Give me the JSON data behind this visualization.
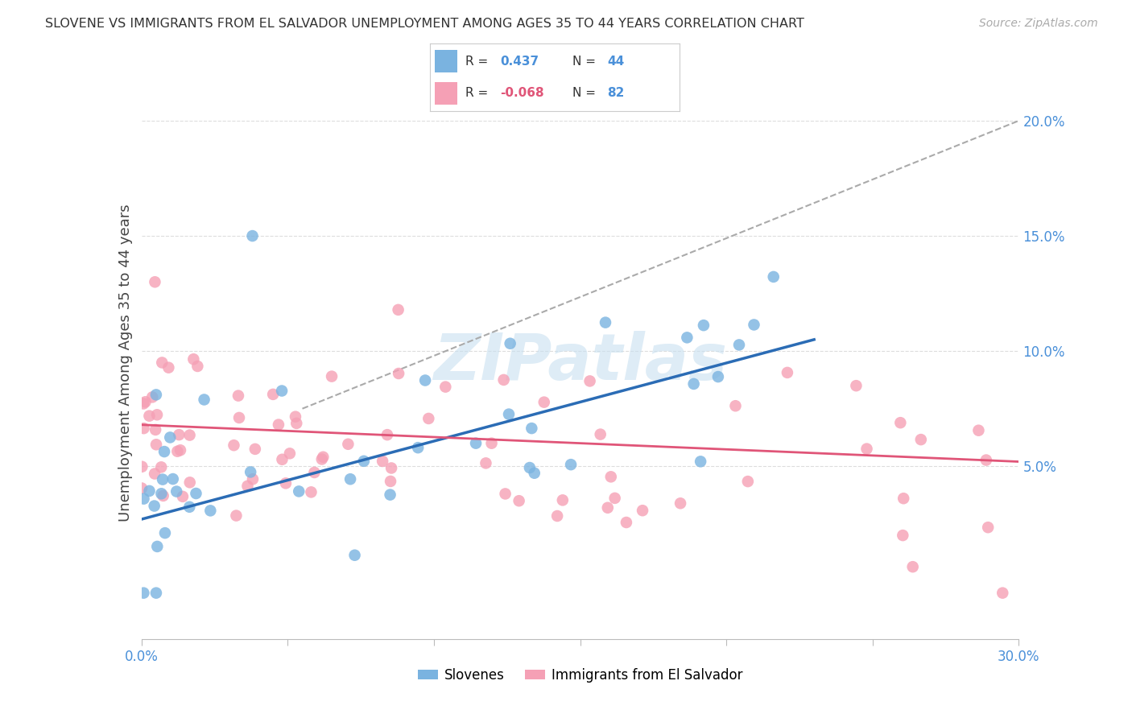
{
  "title": "SLOVENE VS IMMIGRANTS FROM EL SALVADOR UNEMPLOYMENT AMONG AGES 35 TO 44 YEARS CORRELATION CHART",
  "source": "Source: ZipAtlas.com",
  "ylabel": "Unemployment Among Ages 35 to 44 years",
  "xlim": [
    0.0,
    0.3
  ],
  "ylim": [
    -0.025,
    0.215
  ],
  "ytick_pos": [
    0.05,
    0.1,
    0.15,
    0.2
  ],
  "ytick_labels": [
    "5.0%",
    "10.0%",
    "15.0%",
    "20.0%"
  ],
  "xtick_pos": [
    0.0,
    0.05,
    0.1,
    0.15,
    0.2,
    0.25,
    0.3
  ],
  "xtick_labels": [
    "0.0%",
    "",
    "",
    "",
    "",
    "",
    "30.0%"
  ],
  "slovene_color": "#7ab3e0",
  "slovene_line_color": "#2b6cb5",
  "elsalvador_color": "#f5a0b5",
  "elsalvador_line_color": "#e05578",
  "dash_color": "#aaaaaa",
  "watermark_color": "#c8e0f0",
  "slovene_R": "0.437",
  "slovene_N": "44",
  "elsalvador_R": "-0.068",
  "elsalvador_N": "82",
  "R_label_color": "#333333",
  "slovene_val_color": "#4a90d9",
  "elsalvador_val_color": "#e05578",
  "N_val_color": "#4a90d9",
  "legend_label_1": "Slovenes",
  "legend_label_2": "Immigrants from El Salvador",
  "slovene_trend_x": [
    0.0,
    0.23
  ],
  "slovene_trend_y": [
    0.027,
    0.105
  ],
  "elsalvador_trend_x": [
    0.0,
    0.3
  ],
  "elsalvador_trend_y": [
    0.068,
    0.052
  ],
  "dash_line_x": [
    0.055,
    0.3
  ],
  "dash_line_y": [
    0.075,
    0.2
  ]
}
